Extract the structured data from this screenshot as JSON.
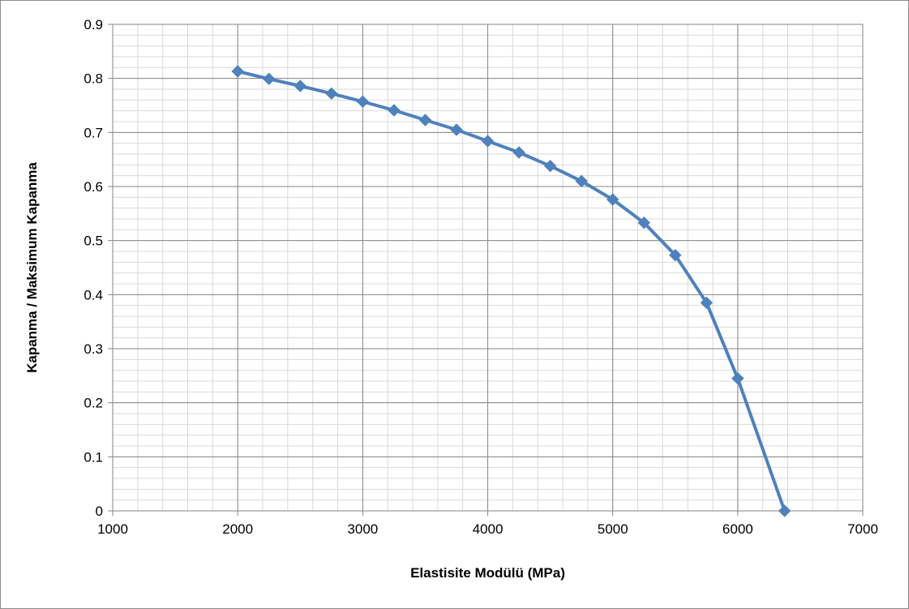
{
  "chart_data": {
    "type": "line",
    "title": "",
    "xlabel": "Elastisite Modülü (MPa)",
    "ylabel": "Kapanma / Maksimum Kapanma",
    "xlim": [
      1000,
      7000
    ],
    "ylim": [
      0,
      0.9
    ],
    "x_ticks": [
      "1000",
      "2000",
      "3000",
      "4000",
      "5000",
      "6000",
      "7000"
    ],
    "y_ticks": [
      "0",
      "0.1",
      "0.2",
      "0.3",
      "0.4",
      "0.5",
      "0.6",
      "0.7",
      "0.8",
      "0.9"
    ],
    "grid": true,
    "legend": "none",
    "series": [
      {
        "color": "#4f81bd",
        "marker": "diamond",
        "x": [
          2000,
          2250,
          2500,
          2750,
          3000,
          3250,
          3500,
          3750,
          4000,
          4250,
          4500,
          4750,
          5000,
          5250,
          5500,
          5750,
          6000,
          6375
        ],
        "y": [
          0.813,
          0.799,
          0.786,
          0.772,
          0.757,
          0.741,
          0.723,
          0.705,
          0.684,
          0.663,
          0.638,
          0.61,
          0.576,
          0.533,
          0.473,
          0.385,
          0.245,
          0.0
        ]
      }
    ]
  }
}
